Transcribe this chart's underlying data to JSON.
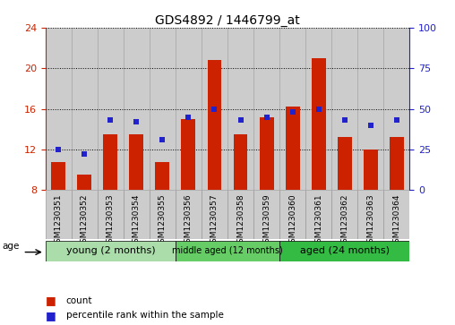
{
  "title": "GDS4892 / 1446799_at",
  "samples": [
    "GSM1230351",
    "GSM1230352",
    "GSM1230353",
    "GSM1230354",
    "GSM1230355",
    "GSM1230356",
    "GSM1230357",
    "GSM1230358",
    "GSM1230359",
    "GSM1230360",
    "GSM1230361",
    "GSM1230362",
    "GSM1230363",
    "GSM1230364"
  ],
  "count_values": [
    10.8,
    9.5,
    13.5,
    13.5,
    10.8,
    15.0,
    20.8,
    13.5,
    15.2,
    16.2,
    21.0,
    13.2,
    12.0,
    13.2
  ],
  "percentile_values": [
    25,
    22,
    43,
    42,
    31,
    45,
    50,
    43,
    45,
    48,
    50,
    43,
    40,
    43
  ],
  "ylim_left": [
    8,
    24
  ],
  "ylim_right": [
    0,
    100
  ],
  "yticks_left": [
    8,
    12,
    16,
    20,
    24
  ],
  "yticks_right": [
    0,
    25,
    50,
    75,
    100
  ],
  "bar_color": "#cc2200",
  "dot_color": "#2222cc",
  "bg_color": "#ffffff",
  "groups": [
    {
      "label": "young (2 months)",
      "indices": [
        0,
        1,
        2,
        3,
        4
      ],
      "color": "#aaddaa"
    },
    {
      "label": "middle aged (12 months)",
      "indices": [
        5,
        6,
        7,
        8
      ],
      "color": "#66cc66"
    },
    {
      "label": "aged (24 months)",
      "indices": [
        9,
        10,
        11,
        12,
        13
      ],
      "color": "#33bb44"
    }
  ],
  "legend_count_label": "count",
  "legend_pct_label": "percentile rank within the sample",
  "age_label": "age",
  "left_axis_color": "#cc2200",
  "right_axis_color": "#2222cc",
  "xtick_bg_color": "#cccccc",
  "xtick_border_color": "#999999"
}
